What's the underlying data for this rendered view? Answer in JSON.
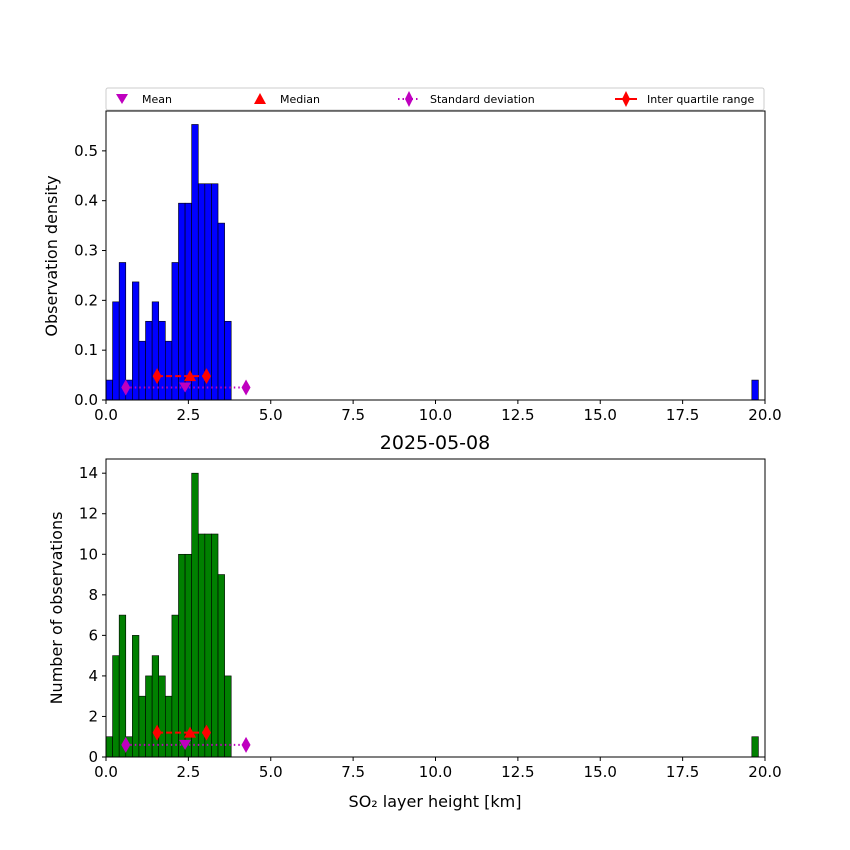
{
  "chart_data": [
    {
      "type": "bar",
      "bins": {
        "start": 0.0,
        "width": 0.2
      },
      "values": [
        0.04,
        0.197,
        0.276,
        0.04,
        0.237,
        0.118,
        0.158,
        0.197,
        0.158,
        0.118,
        0.276,
        0.395,
        0.395,
        0.553,
        0.434,
        0.434,
        0.434,
        0.355,
        0.158
      ],
      "outlier_bin": {
        "x": 19.6,
        "value": 0.04
      },
      "ylabel": "Observation density",
      "xlim": [
        0,
        20
      ],
      "ylim": [
        0,
        0.58
      ],
      "xticks": [
        "0.0",
        "2.5",
        "5.0",
        "7.5",
        "10.0",
        "12.5",
        "15.0",
        "17.5",
        "20.0"
      ],
      "yticks": [
        "0.0",
        "0.1",
        "0.2",
        "0.3",
        "0.4",
        "0.5"
      ],
      "bar_color": "#0000ff",
      "stats": {
        "y_std": 0.025,
        "y_iqr": 0.048,
        "y_mean": 0.025,
        "y_median": 0.048,
        "mean": 2.4,
        "median": 2.55,
        "std_range": [
          0.6,
          4.25
        ],
        "iqr_range": [
          1.55,
          3.05
        ]
      },
      "legend": {
        "placement": "top",
        "mean": "Mean",
        "median": "Median",
        "std": "Standard deviation",
        "iqr": "Inter quartile range"
      }
    },
    {
      "type": "bar",
      "title": "2025-05-08",
      "bins": {
        "start": 0.0,
        "width": 0.2
      },
      "values": [
        1,
        5,
        7,
        1,
        6,
        3,
        4,
        5,
        4,
        3,
        7,
        10,
        10,
        14,
        11,
        11,
        11,
        9,
        4
      ],
      "outlier_bin": {
        "x": 19.6,
        "value": 1
      },
      "xlabel": "SO₂ layer height [km]",
      "ylabel": "Number of observations",
      "xlim": [
        0,
        20
      ],
      "ylim": [
        0,
        14.7
      ],
      "xticks": [
        "0.0",
        "2.5",
        "5.0",
        "7.5",
        "10.0",
        "12.5",
        "15.0",
        "17.5",
        "20.0"
      ],
      "yticks": [
        "0",
        "2",
        "4",
        "6",
        "8",
        "10",
        "12",
        "14"
      ],
      "bar_color": "#008000",
      "stats": {
        "y_std": 0.6,
        "y_iqr": 1.2,
        "y_mean": 0.6,
        "y_median": 1.2,
        "mean": 2.4,
        "median": 2.55,
        "std_range": [
          0.6,
          4.25
        ],
        "iqr_range": [
          1.55,
          3.05
        ]
      }
    }
  ],
  "colors": {
    "mean": "#bf00bf",
    "median": "#ff0000",
    "std": "#bf00bf",
    "iqr": "#ff0000"
  }
}
